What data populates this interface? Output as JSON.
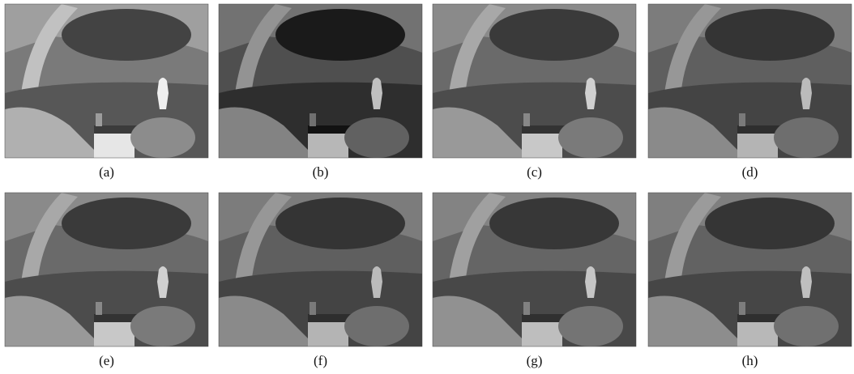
{
  "figure": {
    "panels": [
      {
        "caption": "(a)"
      },
      {
        "caption": "(b)"
      },
      {
        "caption": "(c)"
      },
      {
        "caption": "(d)"
      },
      {
        "caption": "(e)"
      },
      {
        "caption": "(f)"
      },
      {
        "caption": "(g)"
      },
      {
        "caption": "(h)"
      }
    ]
  }
}
